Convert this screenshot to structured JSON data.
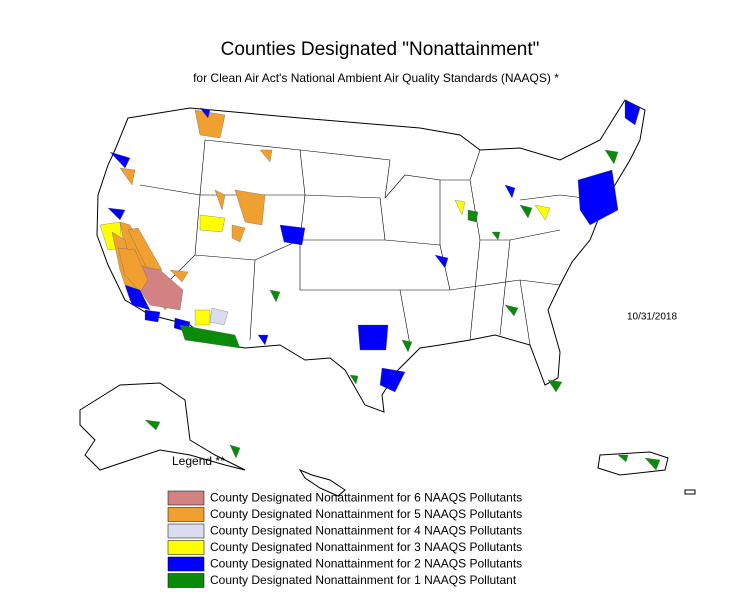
{
  "title": "Counties Designated \"Nonattainment\"",
  "subtitle": "for Clean Air Act's National Ambient Air Quality Standards (NAAQS) *",
  "date": "10/31/2018",
  "legend": {
    "title": "Legend **",
    "items": [
      {
        "label": "County Designated Nonattainment for 6 NAAQS Pollutants",
        "color": "#d28282"
      },
      {
        "label": "County Designated Nonattainment for 5 NAAQS Pollutants",
        "color": "#f0a030"
      },
      {
        "label": "County Designated Nonattainment for 4 NAAQS Pollutants",
        "color": "#dcdcf0"
      },
      {
        "label": "County Designated Nonattainment for 3 NAAQS Pollutants",
        "color": "#ffff00"
      },
      {
        "label": "County Designated Nonattainment for 2 NAAQS Pollutants",
        "color": "#0000ff"
      },
      {
        "label": "County Designated Nonattainment for 1 NAAQS Pollutant",
        "color": "#0a8c0a"
      }
    ]
  }
}
